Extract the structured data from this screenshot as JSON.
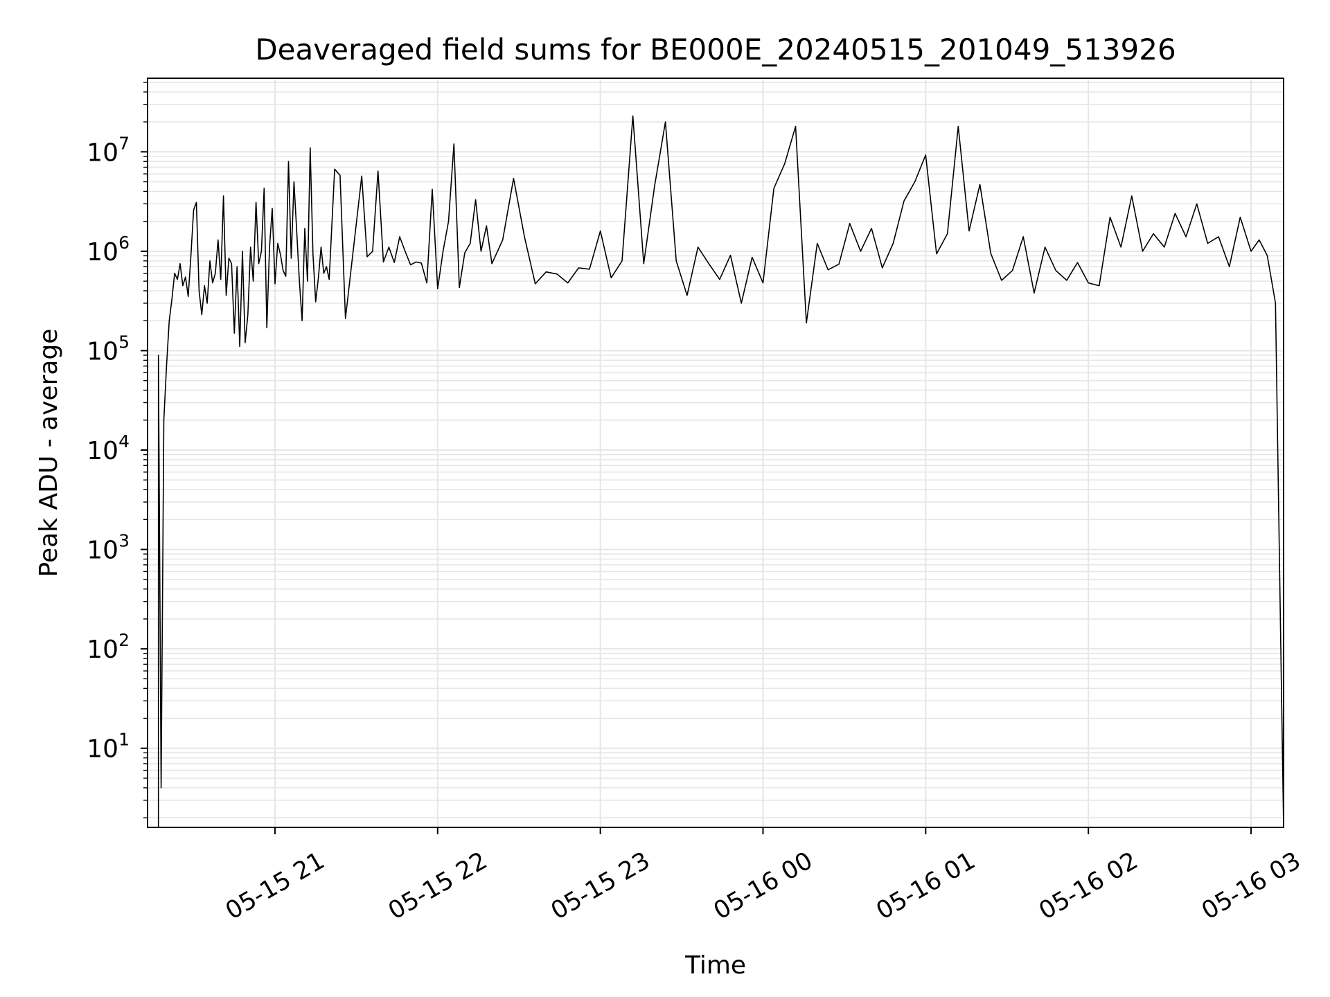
{
  "chart_data": {
    "type": "line",
    "title": "Deaveraged field sums for BE000E_20240515_201049_513926",
    "xlabel": "Time",
    "ylabel": "Peak ADU - average",
    "yscale": "log",
    "xlim": [
      "2024-05-15 20:13",
      "2024-05-16 03:12"
    ],
    "ylim": [
      1.6,
      55000000
    ],
    "grid": true,
    "line_color": "#000000",
    "grid_color": "#e6e6e6",
    "x_ticks": [
      {
        "t": "2024-05-15 21:00",
        "label": "05-15 21"
      },
      {
        "t": "2024-05-15 22:00",
        "label": "05-15 22"
      },
      {
        "t": "2024-05-15 23:00",
        "label": "05-15 23"
      },
      {
        "t": "2024-05-16 00:00",
        "label": "05-16 00"
      },
      {
        "t": "2024-05-16 01:00",
        "label": "05-16 01"
      },
      {
        "t": "2024-05-16 02:00",
        "label": "05-16 02"
      },
      {
        "t": "2024-05-16 03:00",
        "label": "05-16 03"
      }
    ],
    "y_ticks": [
      {
        "value": 10,
        "base": "10",
        "exp": "1"
      },
      {
        "value": 100,
        "base": "10",
        "exp": "2"
      },
      {
        "value": 1000,
        "base": "10",
        "exp": "3"
      },
      {
        "value": 10000,
        "base": "10",
        "exp": "4"
      },
      {
        "value": 100000,
        "base": "10",
        "exp": "5"
      },
      {
        "value": 1000000,
        "base": "10",
        "exp": "6"
      },
      {
        "value": 10000000,
        "base": "10",
        "exp": "7"
      }
    ],
    "series": [
      {
        "x": [
          "2024-05-15 20:17",
          "2024-05-15 20:17",
          "2024-05-15 20:18",
          "2024-05-15 20:19",
          "2024-05-15 20:20",
          "2024-05-15 20:21",
          "2024-05-15 20:22",
          "2024-05-15 20:23",
          "2024-05-15 20:24",
          "2024-05-15 20:25",
          "2024-05-15 20:26",
          "2024-05-15 20:27",
          "2024-05-15 20:28",
          "2024-05-15 20:29",
          "2024-05-15 20:30",
          "2024-05-15 20:31",
          "2024-05-15 20:32",
          "2024-05-15 20:33",
          "2024-05-15 20:34",
          "2024-05-15 20:35",
          "2024-05-15 20:36",
          "2024-05-15 20:37",
          "2024-05-15 20:38",
          "2024-05-15 20:39",
          "2024-05-15 20:40",
          "2024-05-15 20:41",
          "2024-05-15 20:42",
          "2024-05-15 20:43",
          "2024-05-15 20:44",
          "2024-05-15 20:45",
          "2024-05-15 20:46",
          "2024-05-15 20:47",
          "2024-05-15 20:48",
          "2024-05-15 20:49",
          "2024-05-15 20:50",
          "2024-05-15 20:51",
          "2024-05-15 20:52",
          "2024-05-15 20:53",
          "2024-05-15 20:54",
          "2024-05-15 20:55",
          "2024-05-15 20:56",
          "2024-05-15 20:57",
          "2024-05-15 20:58",
          "2024-05-15 20:59",
          "2024-05-15 21:00",
          "2024-05-15 21:01",
          "2024-05-15 21:02",
          "2024-05-15 21:03",
          "2024-05-15 21:04",
          "2024-05-15 21:05",
          "2024-05-15 21:06",
          "2024-05-15 21:07",
          "2024-05-15 21:08",
          "2024-05-15 21:09",
          "2024-05-15 21:10",
          "2024-05-15 21:11",
          "2024-05-15 21:12",
          "2024-05-15 21:13",
          "2024-05-15 21:14",
          "2024-05-15 21:15",
          "2024-05-15 21:16",
          "2024-05-15 21:17",
          "2024-05-15 21:18",
          "2024-05-15 21:19",
          "2024-05-15 21:20",
          "2024-05-15 21:22",
          "2024-05-15 21:24",
          "2024-05-15 21:26",
          "2024-05-15 21:28",
          "2024-05-15 21:30",
          "2024-05-15 21:32",
          "2024-05-15 21:34",
          "2024-05-15 21:36",
          "2024-05-15 21:38",
          "2024-05-15 21:40",
          "2024-05-15 21:42",
          "2024-05-15 21:44",
          "2024-05-15 21:46",
          "2024-05-15 21:48",
          "2024-05-15 21:50",
          "2024-05-15 21:52",
          "2024-05-15 21:54",
          "2024-05-15 21:56",
          "2024-05-15 21:58",
          "2024-05-15 22:00",
          "2024-05-15 22:02",
          "2024-05-15 22:04",
          "2024-05-15 22:06",
          "2024-05-15 22:08",
          "2024-05-15 22:10",
          "2024-05-15 22:12",
          "2024-05-15 22:14",
          "2024-05-15 22:16",
          "2024-05-15 22:18",
          "2024-05-15 22:20",
          "2024-05-15 22:24",
          "2024-05-15 22:28",
          "2024-05-15 22:32",
          "2024-05-15 22:36",
          "2024-05-15 22:40",
          "2024-05-15 22:44",
          "2024-05-15 22:48",
          "2024-05-15 22:52",
          "2024-05-15 22:56",
          "2024-05-15 23:00",
          "2024-05-15 23:04",
          "2024-05-15 23:08",
          "2024-05-15 23:12",
          "2024-05-15 23:16",
          "2024-05-15 23:20",
          "2024-05-15 23:24",
          "2024-05-15 23:28",
          "2024-05-15 23:32",
          "2024-05-15 23:36",
          "2024-05-15 23:40",
          "2024-05-15 23:44",
          "2024-05-15 23:48",
          "2024-05-15 23:52",
          "2024-05-15 23:56",
          "2024-05-16 00:00",
          "2024-05-16 00:04",
          "2024-05-16 00:08",
          "2024-05-16 00:12",
          "2024-05-16 00:16",
          "2024-05-16 00:20",
          "2024-05-16 00:24",
          "2024-05-16 00:28",
          "2024-05-16 00:32",
          "2024-05-16 00:36",
          "2024-05-16 00:40",
          "2024-05-16 00:44",
          "2024-05-16 00:48",
          "2024-05-16 00:52",
          "2024-05-16 00:56",
          "2024-05-16 01:00",
          "2024-05-16 01:04",
          "2024-05-16 01:08",
          "2024-05-16 01:12",
          "2024-05-16 01:16",
          "2024-05-16 01:20",
          "2024-05-16 01:24",
          "2024-05-16 01:28",
          "2024-05-16 01:32",
          "2024-05-16 01:36",
          "2024-05-16 01:40",
          "2024-05-16 01:44",
          "2024-05-16 01:48",
          "2024-05-16 01:52",
          "2024-05-16 01:56",
          "2024-05-16 02:00",
          "2024-05-16 02:04",
          "2024-05-16 02:08",
          "2024-05-16 02:12",
          "2024-05-16 02:16",
          "2024-05-16 02:20",
          "2024-05-16 02:24",
          "2024-05-16 02:28",
          "2024-05-16 02:32",
          "2024-05-16 02:36",
          "2024-05-16 02:40",
          "2024-05-16 02:44",
          "2024-05-16 02:48",
          "2024-05-16 02:52",
          "2024-05-16 02:56",
          "2024-05-16 03:00",
          "2024-05-16 03:03",
          "2024-05-16 03:06",
          "2024-05-16 03:09",
          "2024-05-16 03:12"
        ],
        "y": [
          1.6,
          90000,
          4,
          20000,
          70000,
          200000,
          330000,
          600000,
          520000,
          750000,
          450000,
          550000,
          350000,
          900000,
          2600000,
          3100000,
          400000,
          230000,
          450000,
          300000,
          800000,
          480000,
          600000,
          1300000,
          520000,
          3600000,
          360000,
          850000,
          750000,
          150000,
          700000,
          110000,
          1000000,
          120000,
          230000,
          1100000,
          500000,
          3100000,
          750000,
          1000000,
          4300000,
          170000,
          1100000,
          2700000,
          470000,
          1200000,
          930000,
          640000,
          560000,
          8000000,
          850000,
          5000000,
          1600000,
          500000,
          200000,
          1700000,
          500000,
          11000000,
          940000,
          310000,
          540000,
          1100000,
          600000,
          700000,
          520000,
          6700000,
          5800000,
          210000,
          640000,
          1900000,
          5700000,
          880000,
          1000000,
          6400000,
          780000,
          1100000,
          770000,
          1400000,
          1000000,
          730000,
          780000,
          760000,
          480000,
          4200000,
          420000,
          1000000,
          2000000,
          12000000,
          430000,
          960000,
          1200000,
          3300000,
          1000000,
          1800000,
          750000,
          1300000,
          5400000,
          1400000,
          470000,
          620000,
          590000,
          480000,
          680000,
          660000,
          1600000,
          540000,
          800000,
          23000000,
          750000,
          4500000,
          20000000,
          800000,
          360000,
          1100000,
          750000,
          520000,
          910000,
          300000,
          870000,
          480000,
          4300000,
          7600000,
          18000000,
          190000,
          1200000,
          650000,
          740000,
          1900000,
          1000000,
          1700000,
          680000,
          1200000,
          3200000,
          5000000,
          9300000,
          940000,
          1500000,
          18000000,
          1600000,
          4700000,
          950000,
          510000,
          640000,
          1400000,
          380000,
          1100000,
          640000,
          510000,
          770000,
          480000,
          450000,
          2200000,
          1100000,
          3600000,
          1000000,
          1500000,
          1100000,
          2400000,
          1400000,
          3000000,
          1200000,
          1400000,
          700000,
          2200000,
          1000000,
          1300000,
          900000,
          300000,
          1.6
        ]
      }
    ]
  }
}
